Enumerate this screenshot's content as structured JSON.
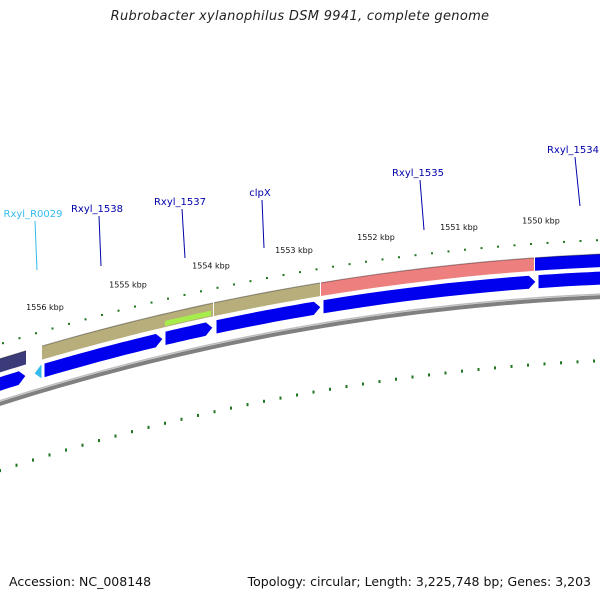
{
  "title": "Rubrobacter xylanophilus DSM 9941, complete genome",
  "footer": {
    "accession": "Accession: NC_008148",
    "topology": "Topology: circular; Length: 3,225,748 bp; Genes: 3,203"
  },
  "colors": {
    "cds": "#0000ee",
    "rna": "#33bbee",
    "gene_khaki": "#b8ae7c",
    "gene_red": "#ee7f7f",
    "gene_green": "#a6ec4a",
    "gene_dark": "#3b3b7a",
    "ticks": "#227722",
    "backbone": "#808080",
    "label_cds": "#0000aa",
    "label_rna": "#33bbee"
  },
  "ticks": {
    "labels": [
      "1556 kbp",
      "1555 kbp",
      "1554 kbp",
      "1553 kbp",
      "1552 kbp",
      "1551 kbp",
      "1550 kbp"
    ]
  },
  "genes": [
    {
      "name": "Rxyl_R0029",
      "type": "rna"
    },
    {
      "name": "Rxyl_1538",
      "type": "cds"
    },
    {
      "name": "Rxyl_1537",
      "type": "cds"
    },
    {
      "name": "clpX",
      "type": "cds"
    },
    {
      "name": "Rxyl_1535",
      "type": "cds"
    },
    {
      "name": "Rxyl_1534",
      "type": "cds"
    }
  ]
}
